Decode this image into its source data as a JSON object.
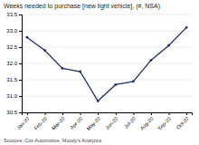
{
  "chart_data": {
    "type": "line",
    "title": "Weeks needed to purchase [new light vehicle], (#, NSA)",
    "categories": [
      "Jan-20",
      "Feb-20",
      "Mar-20",
      "Apr-20",
      "May-20",
      "Jun-20",
      "Jul-20",
      "Aug-20",
      "Sep-20",
      "Oct-20"
    ],
    "values": [
      32.8,
      32.4,
      31.85,
      31.75,
      30.85,
      31.35,
      31.45,
      32.1,
      32.55,
      33.1
    ],
    "color": "#1f3170",
    "marker": "circle",
    "ylim": [
      30.5,
      33.5
    ],
    "yticks": [
      30.5,
      {
        "value": 31,
        "label": "31.0"
      },
      31.5,
      {
        "value": 32,
        "label": "32.0"
      },
      32.5,
      {
        "value": 33,
        "label": "33.0"
      },
      33.5
    ],
    "grid": true,
    "annotations": [
      "Sources: Cox Automotive, Moody's Analytics"
    ]
  }
}
